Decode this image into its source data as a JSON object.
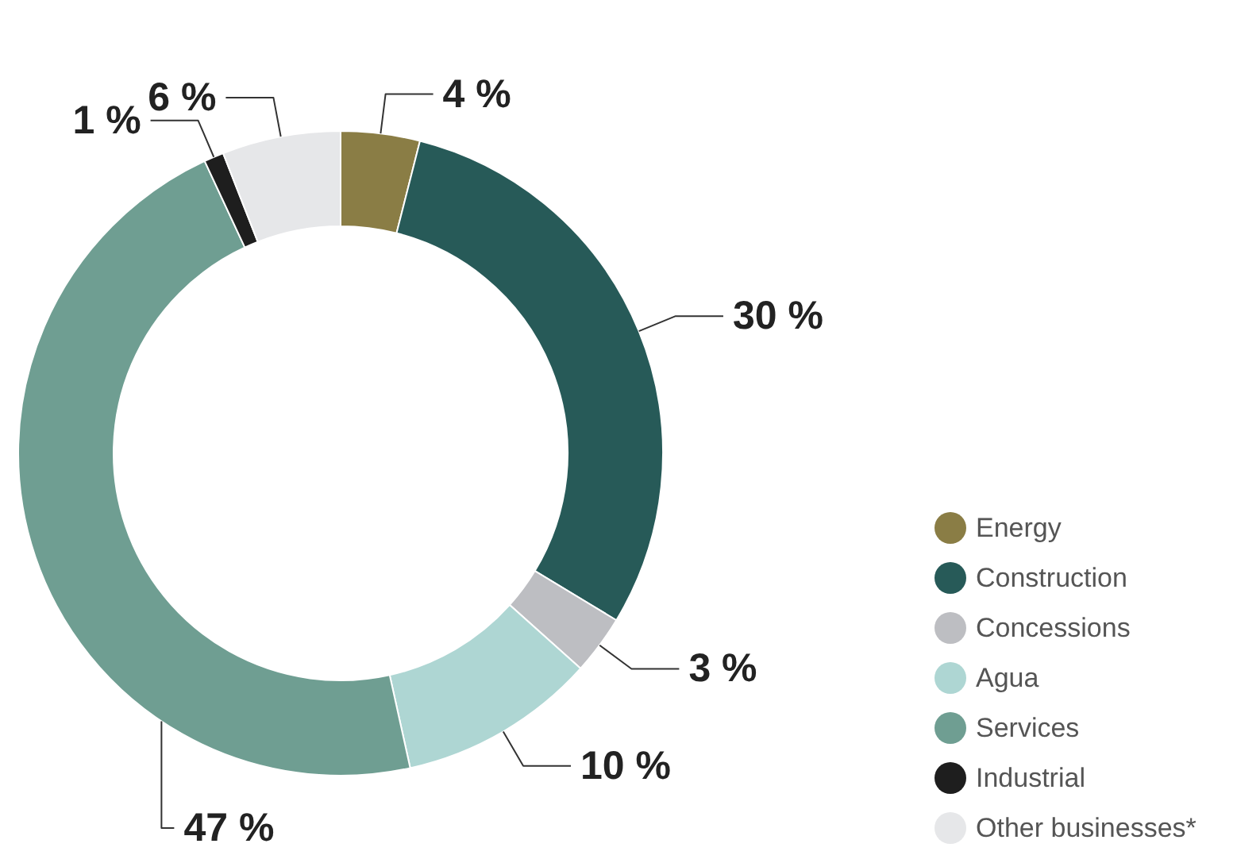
{
  "chart_data": {
    "type": "donut",
    "categories": [
      "Energy",
      "Construction",
      "Concessions",
      "Agua",
      "Services",
      "Industrial",
      "Other businesses*"
    ],
    "values": [
      4,
      30,
      3,
      10,
      47,
      1,
      6
    ],
    "colors": [
      "#8a7d45",
      "#275a58",
      "#bdbec2",
      "#aed6d3",
      "#6f9e92",
      "#1e1e1e",
      "#e6e7e9"
    ],
    "value_labels": [
      "4 %",
      "30 %",
      "3 %",
      "10 %",
      "47 %",
      "1 %",
      "6 %"
    ],
    "legend": "bottom right"
  }
}
